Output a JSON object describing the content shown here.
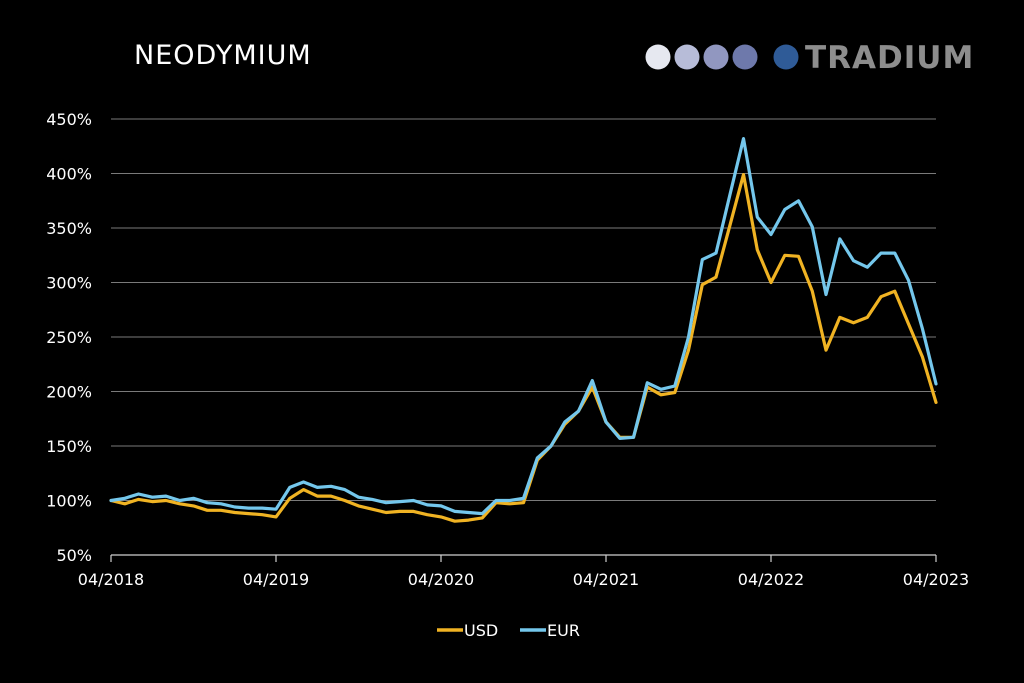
{
  "brand": {
    "name": "TRADIUM",
    "dot_colors": [
      "#e6e8f0",
      "#b7bcd8",
      "#9197c0",
      "#6e79ab",
      "#2f5b97"
    ]
  },
  "chart_data": {
    "type": "line",
    "title": "NEODYMIUM",
    "xlabel": "",
    "ylabel": "",
    "ylim": [
      50,
      450
    ],
    "y_ticks": [
      50,
      100,
      150,
      200,
      250,
      300,
      350,
      400,
      450
    ],
    "y_tick_labels": [
      "50%",
      "100%",
      "150%",
      "200%",
      "250%",
      "300%",
      "350%",
      "400%",
      "450%"
    ],
    "x_tick_labels": [
      "04/2018",
      "04/2019",
      "04/2020",
      "04/2021",
      "04/2022",
      "04/2023"
    ],
    "x_tick_months": [
      0,
      12,
      24,
      36,
      48,
      60
    ],
    "grid": true,
    "legend_position": "bottom-center",
    "series": [
      {
        "name": "USD",
        "color": "#f0b323",
        "values": [
          100,
          97,
          101,
          99,
          100,
          97,
          95,
          91,
          91,
          89,
          88,
          87,
          85,
          102,
          110,
          104,
          104,
          100,
          95,
          92,
          89,
          90,
          90,
          87,
          85,
          81,
          82,
          84,
          98,
          97,
          98,
          137,
          150,
          170,
          182,
          204,
          172,
          158,
          158,
          204,
          197,
          199,
          238,
          298,
          305,
          352,
          399,
          330,
          300,
          325,
          324,
          292,
          238,
          268,
          263,
          268,
          287,
          292,
          262,
          232,
          190
        ]
      },
      {
        "name": "EUR",
        "color": "#74c7ec",
        "values": [
          100,
          102,
          106,
          103,
          104,
          100,
          102,
          98,
          97,
          94,
          93,
          93,
          92,
          112,
          117,
          112,
          113,
          110,
          103,
          101,
          98,
          99,
          100,
          96,
          95,
          90,
          89,
          88,
          100,
          100,
          102,
          139,
          150,
          172,
          182,
          210,
          172,
          157,
          158,
          208,
          202,
          205,
          250,
          321,
          327,
          380,
          432,
          360,
          344,
          367,
          375,
          351,
          289,
          340,
          320,
          314,
          327,
          327,
          302,
          258,
          207
        ]
      }
    ]
  }
}
